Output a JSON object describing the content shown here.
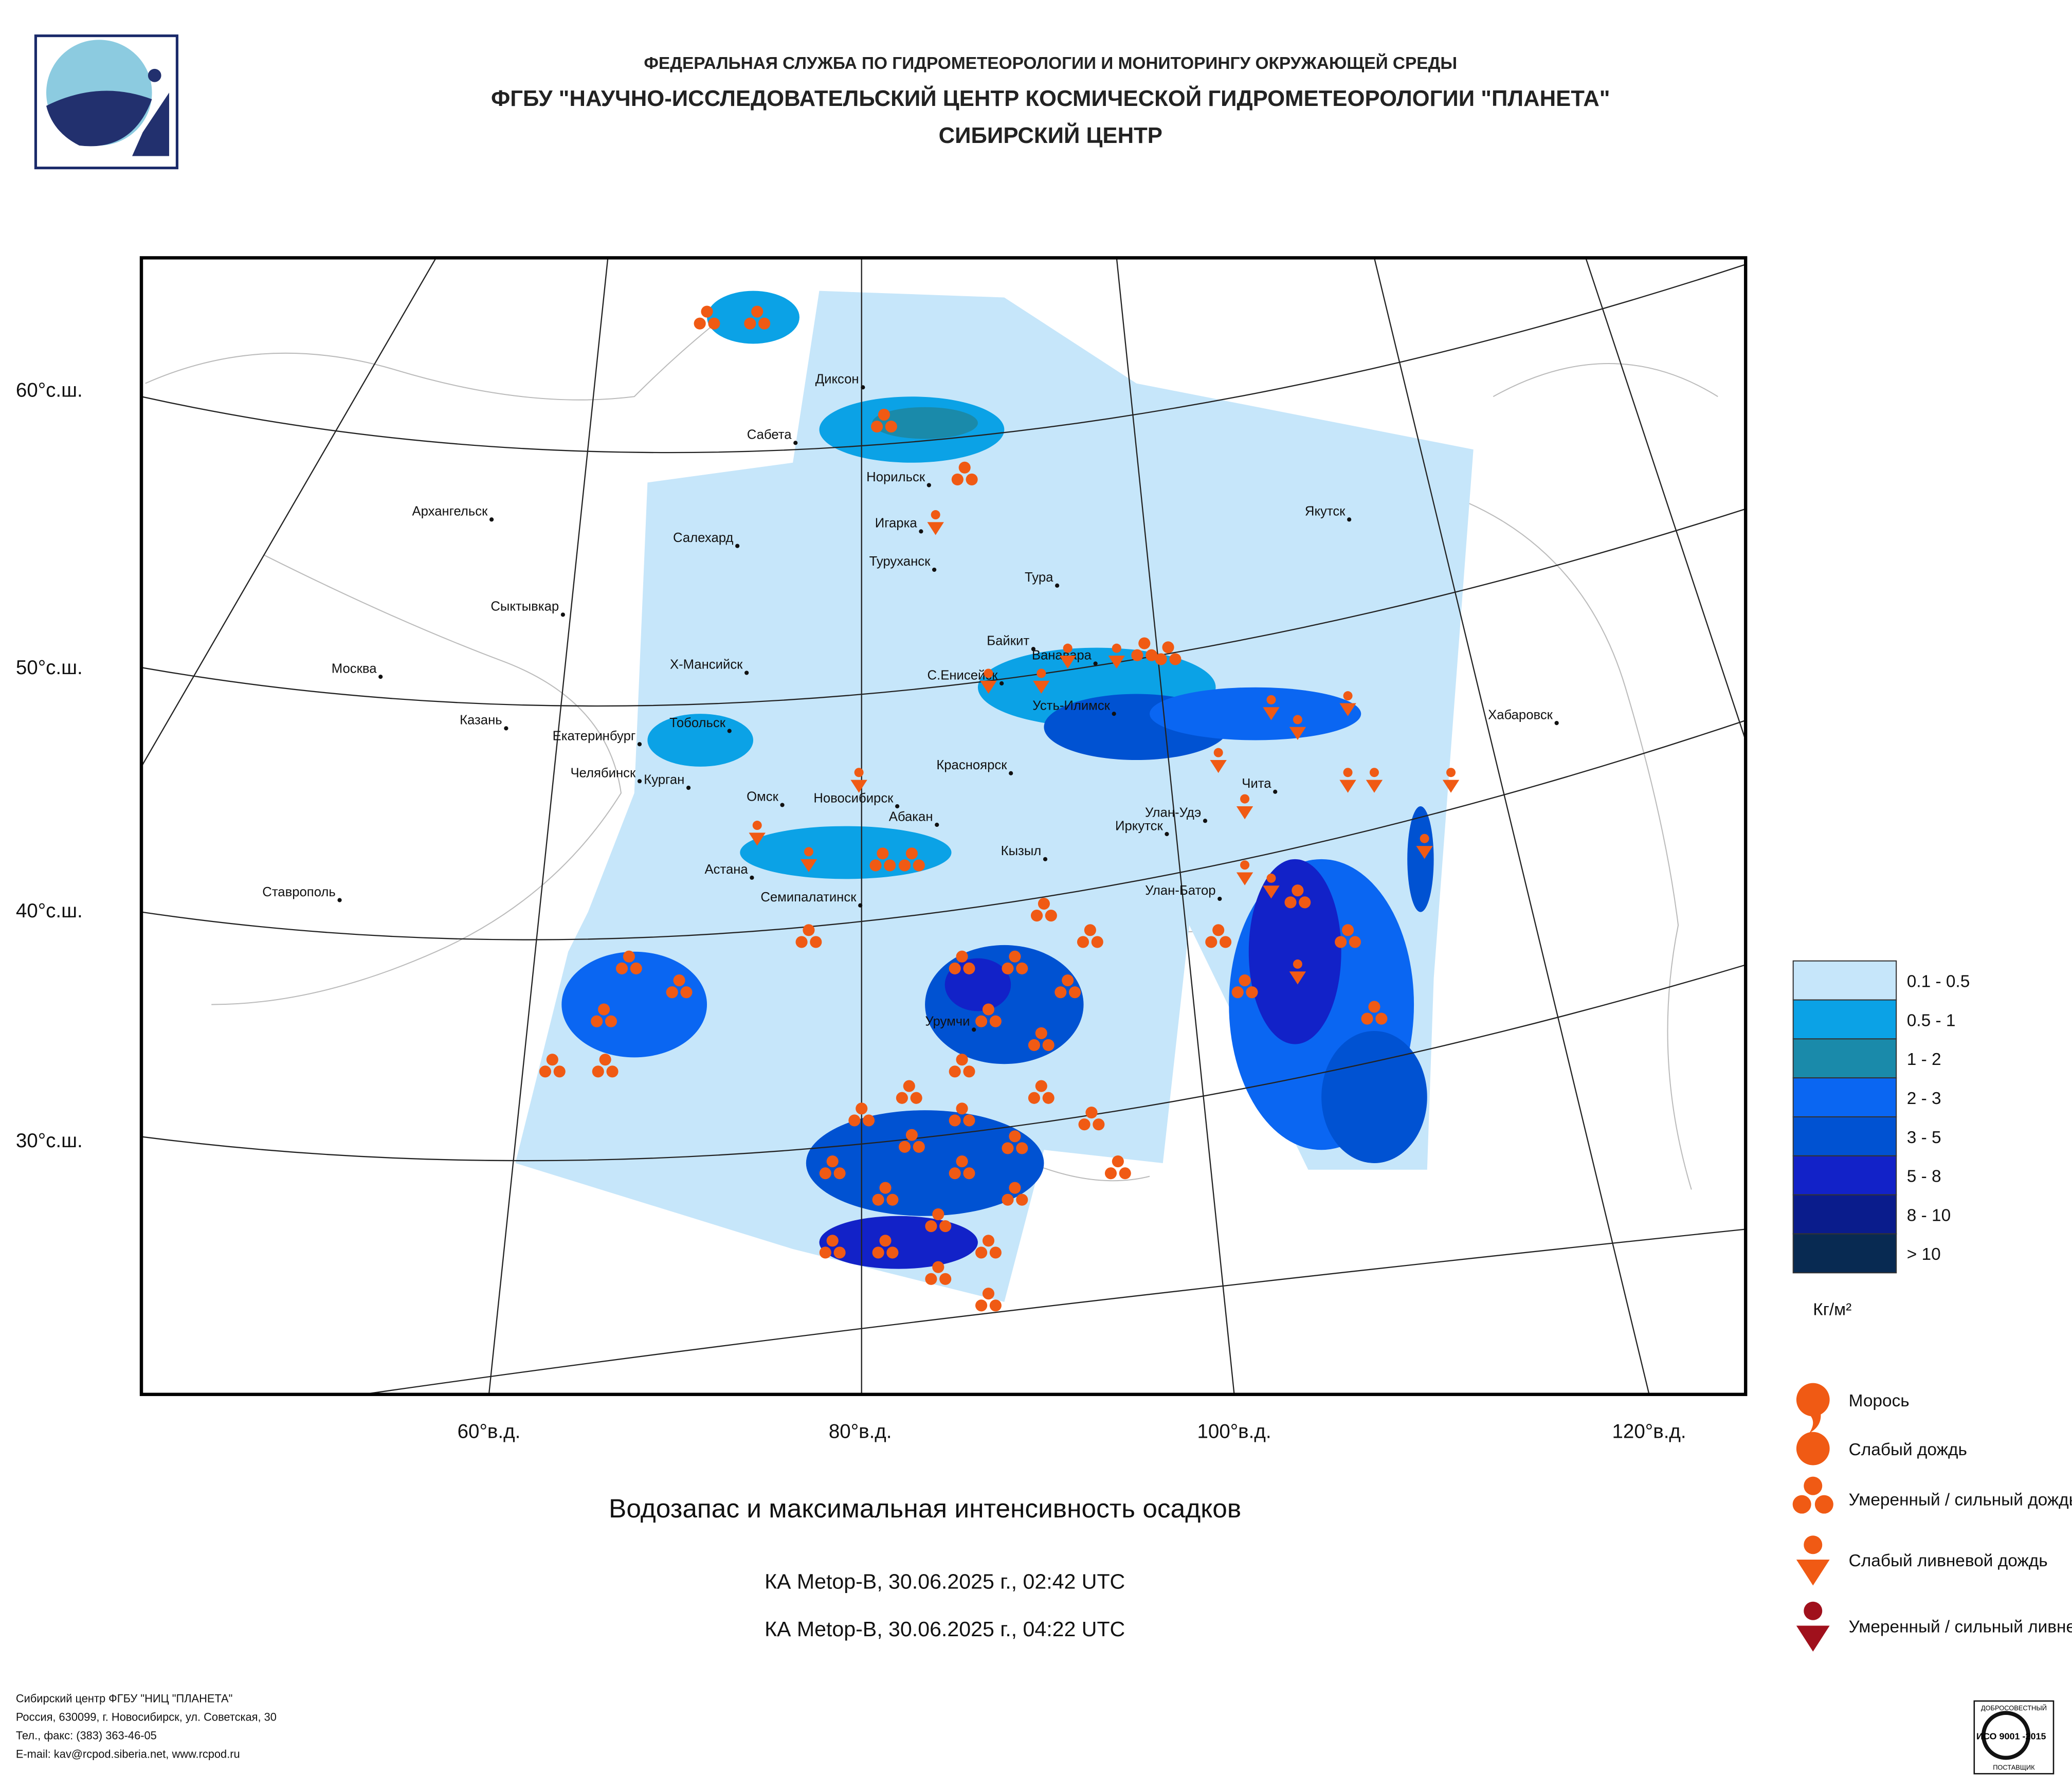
{
  "header": {
    "line1": "ФЕДЕРАЛЬНАЯ СЛУЖБА ПО ГИДРОМЕТЕОРОЛОГИИ И МОНИТОРИНГУ ОКРУЖАЮЩЕЙ СРЕДЫ",
    "line2": "ФГБУ \"НАУЧНО-ИССЛЕДОВАТЕЛЬСКИЙ ЦЕНТР КОСМИЧЕСКОЙ ГИДРОМЕТЕОРОЛОГИИ \"ПЛАНЕТА\"",
    "line3": "СИБИРСКИЙ ЦЕНТР"
  },
  "map": {
    "lat_labels": [
      "60°с.ш.",
      "50°с.ш.",
      "40°с.ш.",
      "30°с.ш."
    ],
    "lon_labels": [
      "60°в.д.",
      "80°в.д.",
      "100°в.д.",
      "120°в.д."
    ],
    "cities": [
      "Диксон",
      "Сабета",
      "Норильск",
      "Игарка",
      "Архангельск",
      "Салехард",
      "Туруханск",
      "Тура",
      "Якутск",
      "Сыктывкар",
      "Байкит",
      "Ванавара",
      "Х-Мансийск",
      "С.Енисейск",
      "Москва",
      "Усть-Илимск",
      "Хабаровск",
      "Казань",
      "Тобольск",
      "Екатеринбург",
      "Красноярск",
      "Челябинск",
      "Курган",
      "Чита",
      "Омск",
      "Новосибирск",
      "Абакан",
      "Улан-Удэ",
      "Иркутск",
      "Кызыл",
      "Астана",
      "Ставрополь",
      "Семипалатинск",
      "Улан-Батор",
      "Урумчи"
    ]
  },
  "legend": {
    "classes": [
      {
        "label": "0.1 - 0.5",
        "color": "#c6e6fa"
      },
      {
        "label": "0.5 - 1",
        "color": "#0ba2e6"
      },
      {
        "label": "1 - 2",
        "color": "#1a8aaa"
      },
      {
        "label": "2 - 3",
        "color": "#0a66f2"
      },
      {
        "label": "3 - 5",
        "color": "#0052d2"
      },
      {
        "label": "5 - 8",
        "color": "#1222c8"
      },
      {
        "label": "8 - 10",
        "color": "#0a1c8c"
      },
      {
        "label": "> 10",
        "color": "#082a52"
      }
    ],
    "unit": "Кг/м²",
    "precip": [
      "Морось",
      "Слабый дождь",
      "Умеренный / сильный дождь",
      "Слабый ливневой дождь",
      "Умеренный / сильный ливневой дождь"
    ]
  },
  "caption": {
    "title": "Водозапас и максимальная интенсивность осадков",
    "pass1": "КА Metop-B, 30.06.2025 г., 02:42 UTC",
    "pass2": "КА Metop-B, 30.06.2025 г., 04:22 UTC"
  },
  "footer": [
    "Сибирский центр ФГБУ \"НИЦ \"ПЛАНЕТА\"",
    "Россия, 630099, г. Новосибирск, ул. Советская, 30",
    "Тел., факс: (383) 363-46-05",
    "E-mail: kav@rcpod.siberia.net, www.rcpod.ru"
  ],
  "badge": {
    "top": "ДОБРОСОВЕСТНЫЙ",
    "mid": "ИСО 9001 -2015",
    "bottom": "ПОСТАВЩИК"
  }
}
